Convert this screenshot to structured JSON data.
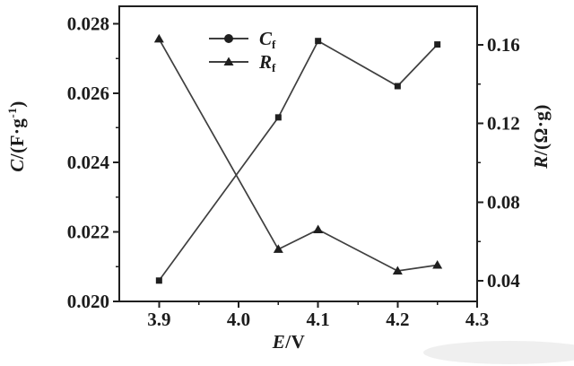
{
  "figure": {
    "background": "#ffffff",
    "ink": "#1f1f1f",
    "line_color": "#3f3f3f",
    "smudge_color": "#ebebeb"
  },
  "chart_data": {
    "type": "line",
    "title": "",
    "grid": false,
    "legend_position": "inside-top-center",
    "x_axis": {
      "label_segments": [
        {
          "text": "E",
          "style": "italic"
        },
        {
          "text": "/V",
          "style": "normal"
        }
      ],
      "range": [
        3.85,
        4.3
      ],
      "major_ticks": [
        "3.9",
        "4.0",
        "4.1",
        "4.2",
        "4.3"
      ],
      "minor_ticks": [
        3.95,
        4.05,
        4.15,
        4.25
      ]
    },
    "left_axis": {
      "label_segments": [
        {
          "text": "C",
          "style": "italic"
        },
        {
          "text": "/(F·g",
          "style": "normal"
        },
        {
          "text": "-1",
          "style": "sup"
        },
        {
          "text": ")",
          "style": "normal"
        }
      ],
      "range": [
        0.02,
        0.0285
      ],
      "major_ticks": [
        "0.020",
        "0.022",
        "0.024",
        "0.026",
        "0.028"
      ],
      "minor_ticks": [
        0.021,
        0.023,
        0.025,
        0.027
      ]
    },
    "right_axis": {
      "label_segments": [
        {
          "text": "R",
          "style": "italic"
        },
        {
          "text": "/(Ω·g)",
          "style": "normal"
        }
      ],
      "range": [
        0.0295,
        0.1796
      ],
      "major_ticks": [
        "0.04",
        "0.08",
        "0.12",
        "0.16"
      ],
      "minor_ticks": [
        0.06,
        0.1,
        0.14
      ]
    },
    "x": [
      3.9,
      4.05,
      4.1,
      4.2,
      4.25
    ],
    "series": [
      {
        "name": "Cf",
        "axis": "left",
        "marker": "square",
        "legend_marker": "circle",
        "label_segments": [
          {
            "text": "C",
            "style": "italic"
          },
          {
            "text": "f",
            "style": "sub"
          }
        ],
        "values": [
          0.0206,
          0.0253,
          0.0275,
          0.0262,
          0.0274
        ]
      },
      {
        "name": "Rf",
        "axis": "right",
        "marker": "triangle",
        "legend_marker": "triangle",
        "label_segments": [
          {
            "text": "R",
            "style": "italic"
          },
          {
            "text": "f",
            "style": "sub"
          }
        ],
        "values": [
          0.163,
          0.056,
          0.066,
          0.045,
          0.048
        ]
      }
    ]
  }
}
